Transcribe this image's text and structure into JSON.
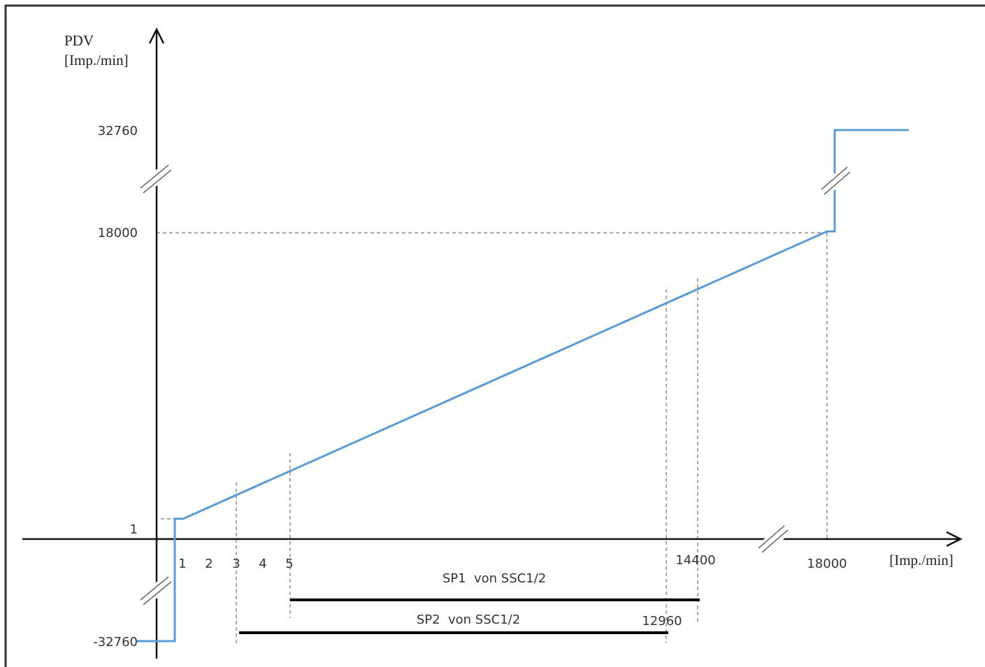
{
  "y_axis": {
    "label_line1": "PDV",
    "label_line2": "[Imp./min]",
    "ticks": [
      "32760",
      "18000",
      "1",
      "-32760"
    ]
  },
  "x_axis": {
    "label": "[Imp./min]",
    "ticks": [
      "1",
      "2",
      "3",
      "4",
      "5",
      "14400",
      "18000"
    ]
  },
  "ranges": [
    {
      "label": "SP1  von SSC1/2"
    },
    {
      "label": "SP2  von SSC1/2",
      "end_label": "12960"
    }
  ]
}
